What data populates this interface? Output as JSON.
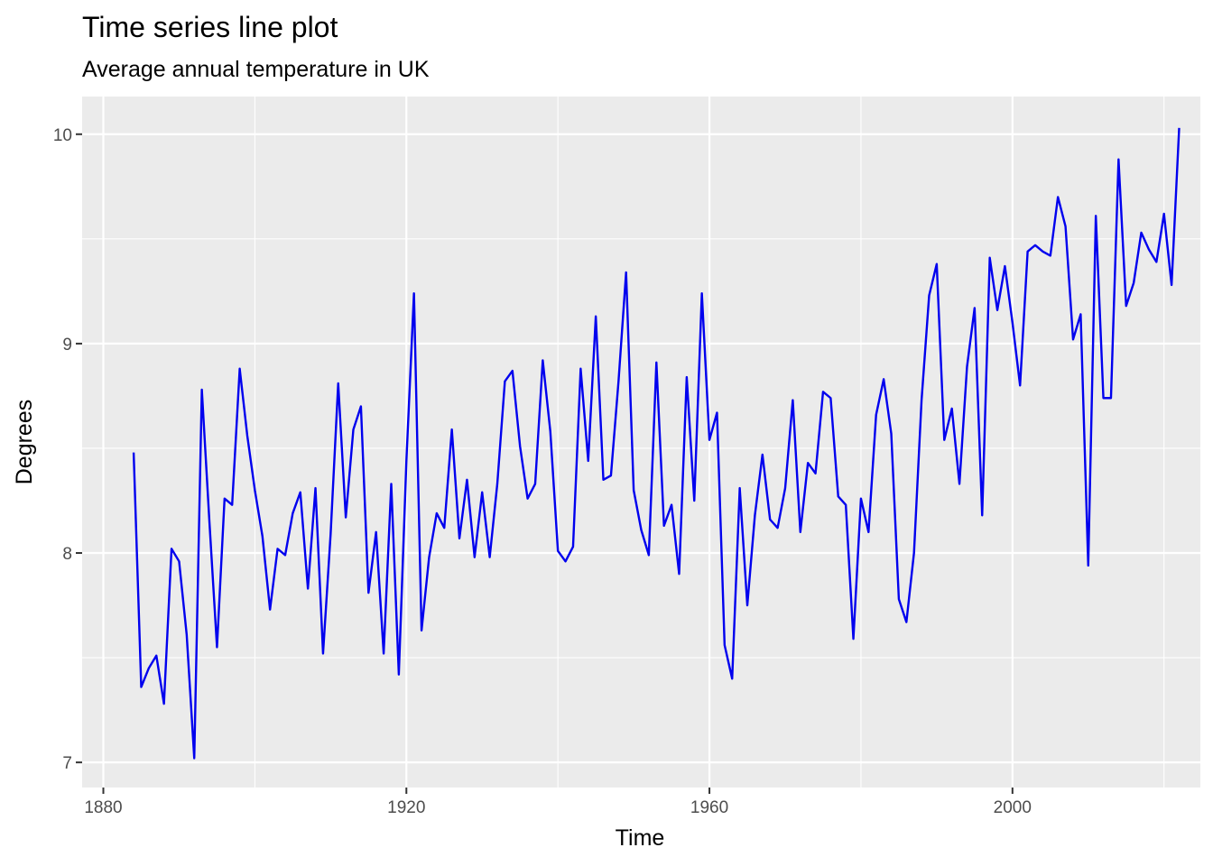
{
  "chart_data": {
    "type": "line",
    "title": "Time series line plot",
    "subtitle": "Average annual temperature in UK",
    "xlabel": "Time",
    "ylabel": "Degrees",
    "xlim": [
      1877.2,
      2024.8
    ],
    "ylim": [
      6.88,
      10.18
    ],
    "x_ticks": [
      1880,
      1920,
      1960,
      2000
    ],
    "x_tick_labels": [
      "1880",
      "1920",
      "1960",
      "2000"
    ],
    "x_minor_ticks": [
      1900,
      1940,
      1980,
      2020
    ],
    "y_ticks": [
      7,
      8,
      9,
      10
    ],
    "y_tick_labels": [
      "7",
      "8",
      "9",
      "10"
    ],
    "y_minor_ticks": [
      7.5,
      8.5,
      9.5
    ],
    "grid": true,
    "colors": {
      "line": "#0000ee",
      "panel": "#ebebeb",
      "grid": "#ffffff"
    },
    "series": [
      {
        "x": [
          1884,
          1885,
          1886,
          1887,
          1888,
          1889,
          1890,
          1891,
          1892,
          1893,
          1894,
          1895,
          1896,
          1897,
          1898,
          1899,
          1900,
          1901,
          1902,
          1903,
          1904,
          1905,
          1906,
          1907,
          1908,
          1909,
          1910,
          1911,
          1912,
          1913,
          1914,
          1915,
          1916,
          1917,
          1918,
          1919,
          1920,
          1921,
          1922,
          1923,
          1924,
          1925,
          1926,
          1927,
          1928,
          1929,
          1930,
          1931,
          1932,
          1933,
          1934,
          1935,
          1936,
          1937,
          1938,
          1939,
          1940,
          1941,
          1942,
          1943,
          1944,
          1945,
          1946,
          1947,
          1948,
          1949,
          1950,
          1951,
          1952,
          1953,
          1954,
          1955,
          1956,
          1957,
          1958,
          1959,
          1960,
          1961,
          1962,
          1963,
          1964,
          1965,
          1966,
          1967,
          1968,
          1969,
          1970,
          1971,
          1972,
          1973,
          1974,
          1975,
          1976,
          1977,
          1978,
          1979,
          1980,
          1981,
          1982,
          1983,
          1984,
          1985,
          1986,
          1987,
          1988,
          1989,
          1990,
          1991,
          1992,
          1993,
          1994,
          1995,
          1996,
          1997,
          1998,
          1999,
          2000,
          2001,
          2002,
          2003,
          2004,
          2005,
          2006,
          2007,
          2008,
          2009,
          2010,
          2011,
          2012,
          2013,
          2014,
          2015,
          2016,
          2017,
          2018,
          2019,
          2020,
          2021,
          2022
        ],
        "y": [
          8.48,
          7.36,
          7.45,
          7.51,
          7.28,
          8.02,
          7.96,
          7.61,
          7.02,
          8.78,
          8.15,
          7.55,
          8.26,
          8.23,
          8.88,
          8.56,
          8.3,
          8.08,
          7.73,
          8.02,
          7.99,
          8.19,
          8.29,
          7.83,
          8.31,
          7.52,
          8.09,
          8.81,
          8.17,
          8.59,
          8.7,
          7.81,
          8.1,
          7.52,
          8.33,
          7.42,
          8.44,
          9.24,
          7.63,
          7.98,
          8.19,
          8.12,
          8.59,
          8.07,
          8.35,
          7.98,
          8.29,
          7.98,
          8.33,
          8.82,
          8.87,
          8.51,
          8.26,
          8.33,
          8.92,
          8.58,
          8.01,
          7.96,
          8.03,
          8.88,
          8.44,
          9.13,
          8.35,
          8.37,
          8.82,
          9.34,
          8.3,
          8.11,
          7.99,
          8.91,
          8.13,
          8.23,
          7.9,
          8.84,
          8.25,
          9.24,
          8.54,
          8.67,
          7.56,
          7.4,
          8.31,
          7.75,
          8.18,
          8.47,
          8.16,
          8.12,
          8.31,
          8.73,
          8.1,
          8.43,
          8.38,
          8.77,
          8.74,
          8.27,
          8.23,
          7.59,
          8.26,
          8.1,
          8.66,
          8.83,
          8.57,
          7.78,
          7.67,
          8.0,
          8.73,
          9.23,
          9.38,
          8.54,
          8.69,
          8.33,
          8.89,
          9.17,
          8.18,
          9.41,
          9.16,
          9.37,
          9.1,
          8.8,
          9.44,
          9.47,
          9.44,
          9.42,
          9.7,
          9.56,
          9.02,
          9.14,
          7.94,
          9.61,
          8.74,
          8.74,
          9.88,
          9.18,
          9.29,
          9.53,
          9.45,
          9.39,
          9.62,
          9.28,
          10.03
        ]
      }
    ]
  }
}
